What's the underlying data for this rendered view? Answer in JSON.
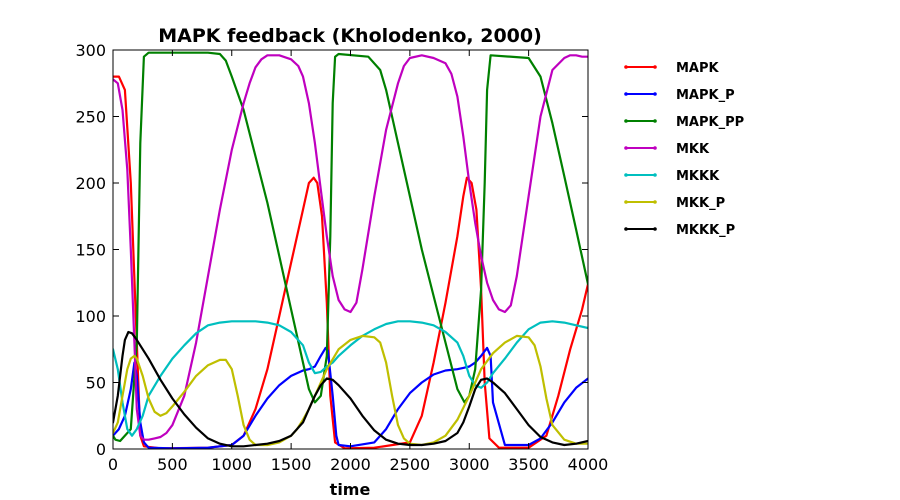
{
  "chart_data": {
    "type": "line",
    "title": "MAPK feedback (Kholodenko, 2000)",
    "xlabel": "time",
    "ylabel": "",
    "xlim": [
      0,
      4000
    ],
    "ylim": [
      0,
      300
    ],
    "xticks": [
      0,
      500,
      1000,
      1500,
      2000,
      2500,
      3000,
      3500,
      4000
    ],
    "yticks": [
      0,
      50,
      100,
      150,
      200,
      250,
      300
    ],
    "grid": false,
    "legend_position": "outside-right",
    "series": [
      {
        "name": "MAPK",
        "color": "#ff0000",
        "x": [
          0,
          50,
          100,
          150,
          200,
          230,
          260,
          400,
          800,
          1000,
          1100,
          1200,
          1300,
          1400,
          1500,
          1600,
          1650,
          1690,
          1720,
          1760,
          1800,
          1830,
          1870,
          1950,
          2200,
          2500,
          2600,
          2700,
          2800,
          2900,
          2950,
          2980,
          3020,
          3060,
          3100,
          3130,
          3170,
          3250,
          3500,
          3650,
          3750,
          3850,
          3950,
          4000
        ],
        "y": [
          280,
          280,
          270,
          200,
          80,
          10,
          2,
          0.5,
          1,
          3,
          10,
          30,
          60,
          100,
          140,
          180,
          200,
          204,
          200,
          175,
          110,
          40,
          5,
          0.5,
          1,
          5,
          25,
          65,
          110,
          160,
          190,
          204,
          200,
          180,
          120,
          50,
          8,
          1,
          1,
          10,
          40,
          75,
          105,
          124
        ]
      },
      {
        "name": "MAPK_P",
        "color": "#0000ff",
        "x": [
          0,
          50,
          100,
          150,
          180,
          200,
          230,
          260,
          300,
          500,
          800,
          1000,
          1100,
          1200,
          1300,
          1400,
          1500,
          1600,
          1650,
          1700,
          1750,
          1790,
          1810,
          1850,
          1880,
          1900,
          2000,
          2200,
          2300,
          2400,
          2500,
          2600,
          2700,
          2800,
          2900,
          2950,
          3000,
          3050,
          3100,
          3150,
          3180,
          3200,
          3300,
          3500,
          3600,
          3700,
          3800,
          3900,
          4000
        ],
        "y": [
          10,
          15,
          25,
          45,
          65,
          55,
          20,
          5,
          1,
          0.5,
          1,
          3,
          10,
          25,
          38,
          48,
          55,
          59,
          60,
          62,
          70,
          76,
          74,
          40,
          10,
          3,
          2,
          5,
          15,
          30,
          42,
          50,
          56,
          59,
          60,
          61,
          62,
          65,
          70,
          76,
          70,
          35,
          3,
          3,
          8,
          20,
          35,
          46,
          53
        ]
      },
      {
        "name": "MAPK_PP",
        "color": "#008000",
        "x": [
          0,
          20,
          60,
          150,
          200,
          230,
          260,
          300,
          800,
          900,
          950,
          1000,
          1100,
          1200,
          1300,
          1400,
          1500,
          1600,
          1650,
          1700,
          1750,
          1800,
          1830,
          1850,
          1870,
          1900,
          2150,
          2250,
          2300,
          2400,
          2500,
          2600,
          2700,
          2800,
          2900,
          2960,
          3000,
          3050,
          3100,
          3130,
          3150,
          3180,
          3500,
          3600,
          3700,
          3800,
          3900,
          4000
        ],
        "y": [
          10,
          7,
          6,
          15,
          80,
          230,
          295,
          298,
          298,
          297,
          292,
          280,
          255,
          220,
          185,
          145,
          105,
          65,
          45,
          35,
          40,
          70,
          160,
          260,
          295,
          297,
          295,
          285,
          270,
          230,
          190,
          150,
          115,
          80,
          45,
          35,
          40,
          60,
          120,
          200,
          270,
          296,
          294,
          280,
          245,
          205,
          165,
          124
        ]
      },
      {
        "name": "MKK",
        "color": "#bf00bf",
        "x": [
          0,
          40,
          80,
          120,
          150,
          180,
          200,
          230,
          260,
          300,
          350,
          400,
          450,
          500,
          600,
          700,
          800,
          900,
          1000,
          1100,
          1150,
          1200,
          1250,
          1300,
          1400,
          1500,
          1560,
          1600,
          1650,
          1700,
          1750,
          1800,
          1850,
          1900,
          1950,
          2000,
          2050,
          2100,
          2200,
          2300,
          2400,
          2450,
          2500,
          2600,
          2700,
          2800,
          2850,
          2900,
          2950,
          3000,
          3050,
          3100,
          3150,
          3200,
          3250,
          3300,
          3350,
          3400,
          3500,
          3600,
          3700,
          3800,
          3850,
          3900,
          3950,
          4000
        ],
        "y": [
          278,
          275,
          255,
          210,
          150,
          80,
          30,
          10,
          7,
          7,
          8,
          9,
          12,
          18,
          40,
          80,
          130,
          180,
          225,
          260,
          275,
          287,
          293,
          296,
          296,
          293,
          288,
          280,
          260,
          230,
          195,
          160,
          130,
          112,
          105,
          103,
          110,
          135,
          190,
          240,
          275,
          288,
          294,
          296,
          294,
          290,
          282,
          265,
          235,
          200,
          170,
          145,
          125,
          112,
          105,
          103,
          108,
          130,
          190,
          250,
          285,
          294,
          296,
          296,
          295,
          295
        ]
      },
      {
        "name": "MKKK",
        "color": "#00bfbf",
        "x": [
          0,
          40,
          80,
          120,
          160,
          200,
          250,
          300,
          400,
          500,
          600,
          700,
          800,
          900,
          1000,
          1100,
          1200,
          1300,
          1400,
          1500,
          1600,
          1650,
          1700,
          1750,
          1800,
          1850,
          1900,
          2000,
          2100,
          2200,
          2300,
          2400,
          2500,
          2600,
          2700,
          2800,
          2900,
          2950,
          3000,
          3050,
          3100,
          3150,
          3200,
          3300,
          3400,
          3500,
          3600,
          3700,
          3800,
          3900,
          4000
        ],
        "y": [
          75,
          60,
          35,
          15,
          10,
          15,
          25,
          40,
          55,
          68,
          78,
          87,
          93,
          95,
          96,
          96,
          96,
          95,
          93,
          88,
          78,
          65,
          57,
          58,
          62,
          65,
          70,
          78,
          85,
          90,
          94,
          96,
          96,
          95,
          93,
          88,
          80,
          70,
          55,
          48,
          46,
          50,
          57,
          68,
          80,
          90,
          95,
          96,
          95,
          93,
          91
        ]
      },
      {
        "name": "MKK_P",
        "color": "#bfbf00",
        "x": [
          0,
          40,
          80,
          120,
          150,
          180,
          200,
          250,
          300,
          350,
          400,
          450,
          500,
          600,
          700,
          800,
          900,
          950,
          1000,
          1050,
          1100,
          1150,
          1200,
          1300,
          1400,
          1500,
          1550,
          1600,
          1650,
          1700,
          1800,
          1900,
          2000,
          2100,
          2200,
          2250,
          2300,
          2350,
          2400,
          2450,
          2500,
          2600,
          2700,
          2800,
          2900,
          3000,
          3050,
          3100,
          3200,
          3300,
          3400,
          3500,
          3550,
          3600,
          3650,
          3700,
          3800,
          3900,
          4000
        ],
        "y": [
          12,
          20,
          40,
          60,
          68,
          70,
          68,
          55,
          38,
          28,
          25,
          27,
          32,
          43,
          55,
          63,
          67,
          67,
          60,
          40,
          18,
          7,
          3,
          3,
          5,
          10,
          15,
          22,
          30,
          40,
          60,
          75,
          82,
          85,
          84,
          80,
          65,
          40,
          18,
          8,
          4,
          3,
          5,
          10,
          22,
          40,
          50,
          60,
          72,
          80,
          85,
          84,
          78,
          62,
          38,
          18,
          7,
          4,
          4
        ]
      },
      {
        "name": "MKKK_P",
        "color": "#000000",
        "x": [
          0,
          40,
          80,
          100,
          130,
          160,
          200,
          300,
          400,
          500,
          600,
          700,
          800,
          900,
          1000,
          1100,
          1200,
          1300,
          1400,
          1500,
          1600,
          1650,
          1700,
          1750,
          1800,
          1850,
          1900,
          2000,
          2100,
          2200,
          2300,
          2400,
          2500,
          2600,
          2700,
          2800,
          2900,
          2950,
          3000,
          3050,
          3100,
          3150,
          3200,
          3300,
          3400,
          3500,
          3600,
          3700,
          3800,
          3900,
          4000
        ],
        "y": [
          20,
          40,
          70,
          82,
          88,
          87,
          82,
          68,
          52,
          38,
          26,
          16,
          8,
          4,
          2,
          2,
          3,
          4,
          6,
          10,
          20,
          30,
          40,
          48,
          53,
          52,
          48,
          38,
          25,
          14,
          7,
          4,
          3,
          3,
          4,
          6,
          12,
          20,
          32,
          45,
          52,
          53,
          50,
          42,
          30,
          18,
          9,
          5,
          3,
          4,
          6
        ]
      }
    ]
  }
}
